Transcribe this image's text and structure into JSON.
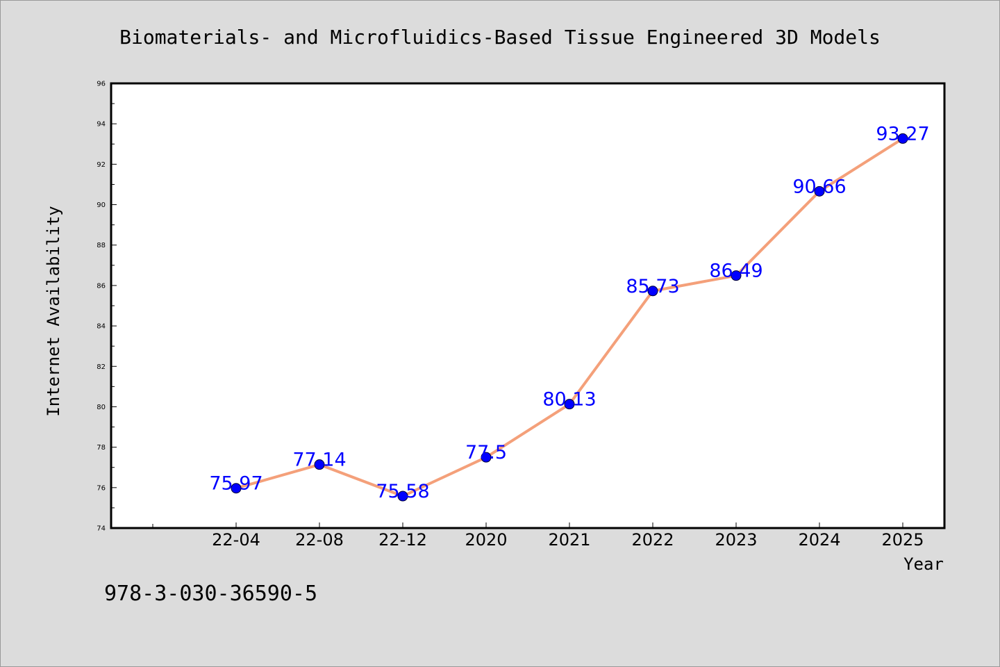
{
  "chart_data": {
    "type": "line",
    "title": "Biomaterials- and Microfluidics-Based Tissue Engineered 3D Models",
    "xlabel": "Year",
    "ylabel": "Internet Availability",
    "categories": [
      "22-04",
      "22-08",
      "22-12",
      "2020",
      "2021",
      "2022",
      "2023",
      "2024",
      "2025"
    ],
    "series": [
      {
        "values": [
          75.97,
          77.14,
          75.58,
          77.5,
          80.13,
          85.73,
          86.49,
          90.66,
          93.27
        ],
        "data_labels": [
          "75.97",
          "77.14",
          "75.58",
          "77.5",
          "80.13",
          "85.73",
          "86.49",
          "90.66",
          "93.27"
        ],
        "line_color": "#f4a07a",
        "marker_color": "#0000ff"
      }
    ],
    "ylim": [
      74,
      96
    ],
    "yticks": [
      74,
      76,
      78,
      80,
      82,
      84,
      86,
      88,
      90,
      92,
      94,
      96
    ],
    "grid": false,
    "legend": "none"
  },
  "footer_text": "978-3-030-36590-5",
  "colors": {
    "background": "#dcdcdc",
    "plot_background": "#ffffff",
    "line": "#f4a07a",
    "marker": "#0000ff",
    "data_label": "#0000ff"
  }
}
